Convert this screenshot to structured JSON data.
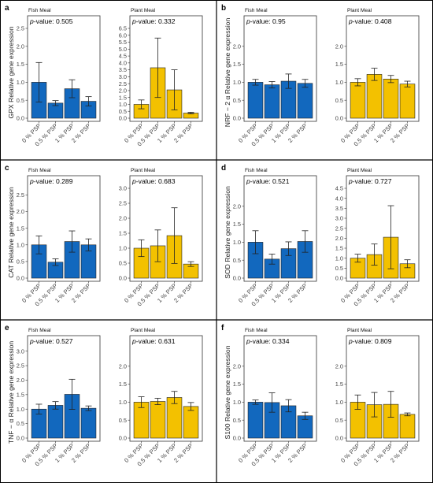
{
  "colors": {
    "fish": "#1268be",
    "plant": "#f3c100",
    "border": "#000000",
    "axis": "#333333"
  },
  "chart_data": [
    {
      "type": "bar",
      "letter": "a",
      "ylabel": "GPX Relative gene expression",
      "facets": [
        {
          "title": "Fish Meal",
          "pvalue_prefix": "p",
          "pvalue_text": "-value: 0.505",
          "ylim": [
            0,
            2.5
          ],
          "ticks": [
            "0.0",
            "0.5",
            "1.0",
            "1.5",
            "2.0",
            "2.5"
          ],
          "categories": [
            "0 % PSP",
            "0.5 % PSP",
            "1 % PSP",
            "2 % PSP"
          ],
          "values": [
            1.0,
            0.42,
            0.82,
            0.47
          ],
          "errors": [
            0.55,
            0.07,
            0.25,
            0.13
          ]
        },
        {
          "title": "Plant Meal",
          "pvalue_prefix": "p",
          "pvalue_text": "-value: 0.332",
          "ylim": [
            0,
            6.5
          ],
          "ticks": [
            "0.0",
            "0.5",
            "1.0",
            "1.5",
            "2.0",
            "2.5",
            "3.0",
            "3.5",
            "4.0",
            "4.5",
            "5.0",
            "5.5",
            "6.0",
            "6.5"
          ],
          "categories": [
            "0 % PSP",
            "0.5 % PSP",
            "1 % PSP",
            "2 % PSP"
          ],
          "values": [
            1.0,
            3.65,
            2.05,
            0.37
          ],
          "errors": [
            0.32,
            2.15,
            1.45,
            0.06
          ]
        }
      ]
    },
    {
      "type": "bar",
      "letter": "b",
      "ylabel": "NRF − 2 α Relative gene expression",
      "facets": [
        {
          "title": "Fish Meal",
          "pvalue_prefix": "p",
          "pvalue_text": "-value: 0.95",
          "ylim": [
            0,
            2.5
          ],
          "ticks": [
            "0.0",
            "0.5",
            "1.0",
            "1.5",
            "2.0"
          ],
          "categories": [
            "0 % PSP",
            "0.5 % PSP",
            "1 % PSP",
            "2 % PSP"
          ],
          "values": [
            1.0,
            0.93,
            1.03,
            0.97
          ],
          "errors": [
            0.08,
            0.09,
            0.2,
            0.11
          ]
        },
        {
          "title": "Plant Meal",
          "pvalue_prefix": "p",
          "pvalue_text": "-value: 0.408",
          "ylim": [
            0,
            2.5
          ],
          "ticks": [
            "0.0",
            "0.5",
            "1.0",
            "1.5",
            "2.0"
          ],
          "categories": [
            "0 % PSP",
            "0.5 % PSP",
            "1 % PSP",
            "2 % PSP"
          ],
          "values": [
            1.0,
            1.22,
            1.09,
            0.95
          ],
          "errors": [
            0.1,
            0.17,
            0.1,
            0.08
          ]
        }
      ]
    },
    {
      "type": "bar",
      "letter": "c",
      "ylabel": "CAT Relative gene expression",
      "facets": [
        {
          "title": "Fish Meal",
          "pvalue_prefix": "p",
          "pvalue_text": "-value: 0.289",
          "ylim": [
            0,
            2.7
          ],
          "ticks": [
            "0.0",
            "0.5",
            "1.0",
            "1.5",
            "2.0",
            "2.5"
          ],
          "categories": [
            "0 % PSP",
            "0.5 % PSP",
            "1 % PSP",
            "2 % PSP"
          ],
          "values": [
            1.0,
            0.48,
            1.1,
            1.0
          ],
          "errors": [
            0.27,
            0.1,
            0.32,
            0.18
          ]
        },
        {
          "title": "Plant Meal",
          "pvalue_prefix": "p",
          "pvalue_text": "-value: 0.683",
          "ylim": [
            0,
            3.0
          ],
          "ticks": [
            "0.0",
            "0.5",
            "1.0",
            "1.5",
            "2.0",
            "2.5",
            "3.0"
          ],
          "categories": [
            "0 % PSP",
            "0.5 % PSP",
            "1 % PSP",
            "2 % PSP"
          ],
          "values": [
            1.0,
            1.08,
            1.42,
            0.47
          ],
          "errors": [
            0.28,
            0.53,
            0.93,
            0.08
          ]
        }
      ]
    },
    {
      "type": "bar",
      "letter": "d",
      "ylabel": "SOD Relative gene expression",
      "facets": [
        {
          "title": "Fish Meal",
          "pvalue_prefix": "p",
          "pvalue_text": "-value: 0.521",
          "ylim": [
            0,
            2.5
          ],
          "ticks": [
            "0.0",
            "0.5",
            "1.0",
            "1.5",
            "2.0"
          ],
          "categories": [
            "0 % PSP",
            "0.5 % PSP",
            "1 % PSP",
            "2 % PSP"
          ],
          "values": [
            1.0,
            0.53,
            0.82,
            1.02
          ],
          "errors": [
            0.32,
            0.14,
            0.19,
            0.3
          ]
        },
        {
          "title": "Plant Meal",
          "pvalue_prefix": "p",
          "pvalue_text": "-value: 0.727",
          "ylim": [
            0,
            4.5
          ],
          "ticks": [
            "0.0",
            "0.5",
            "1.0",
            "1.5",
            "2.0",
            "2.5",
            "3.0",
            "3.5",
            "4.0",
            "4.5"
          ],
          "categories": [
            "0 % PSP",
            "0.5 % PSP",
            "1 % PSP",
            "2 % PSP"
          ],
          "values": [
            1.0,
            1.18,
            2.05,
            0.72
          ],
          "errors": [
            0.2,
            0.53,
            1.58,
            0.2
          ]
        }
      ]
    },
    {
      "type": "bar",
      "letter": "e",
      "ylabel": "TNF − α Relative gene expression",
      "facets": [
        {
          "title": "Fish Meal",
          "pvalue_prefix": "p",
          "pvalue_text": "-value: 0.527",
          "ylim": [
            0,
            3.1
          ],
          "ticks": [
            "0.0",
            "0.5",
            "1.0",
            "1.5",
            "2.0",
            "2.5",
            "3.0"
          ],
          "categories": [
            "0 % PSP",
            "0.5 % PSP",
            "1 % PSP",
            "2 % PSP"
          ],
          "values": [
            1.0,
            1.13,
            1.51,
            1.03
          ],
          "errors": [
            0.17,
            0.13,
            0.52,
            0.08
          ]
        },
        {
          "title": "Plant Meal",
          "pvalue_prefix": "p",
          "pvalue_text": "-value: 0.631",
          "ylim": [
            0,
            2.5
          ],
          "ticks": [
            "0.0",
            "0.5",
            "1.0",
            "1.5",
            "2.0"
          ],
          "categories": [
            "0 % PSP",
            "0.5 % PSP",
            "1 % PSP",
            "2 % PSP"
          ],
          "values": [
            1.0,
            1.02,
            1.13,
            0.88
          ],
          "errors": [
            0.15,
            0.09,
            0.17,
            0.11
          ]
        }
      ]
    },
    {
      "type": "bar",
      "letter": "f",
      "ylabel": "S100 Relative gene expression",
      "facets": [
        {
          "title": "Fish Meal",
          "pvalue_prefix": "p",
          "pvalue_text": "-value: 0.334",
          "ylim": [
            0,
            2.5
          ],
          "ticks": [
            "0.0",
            "0.5",
            "1.0",
            "1.5",
            "2.0"
          ],
          "categories": [
            "0 % PSP",
            "0.5 % PSP",
            "1 % PSP",
            "2 % PSP"
          ],
          "values": [
            1.0,
            0.99,
            0.9,
            0.62
          ],
          "errors": [
            0.06,
            0.27,
            0.17,
            0.1
          ]
        },
        {
          "title": "Plant Meal",
          "pvalue_prefix": "p",
          "pvalue_text": "-value: 0.809",
          "ylim": [
            0,
            2.5
          ],
          "ticks": [
            "0.0",
            "0.5",
            "1.0",
            "1.5",
            "2.0"
          ],
          "categories": [
            "0 % PSP",
            "0.5 % PSP",
            "1 % PSP",
            "2 % PSP"
          ],
          "values": [
            1.0,
            0.93,
            0.94,
            0.66
          ],
          "errors": [
            0.2,
            0.34,
            0.36,
            0.04
          ]
        }
      ]
    }
  ]
}
